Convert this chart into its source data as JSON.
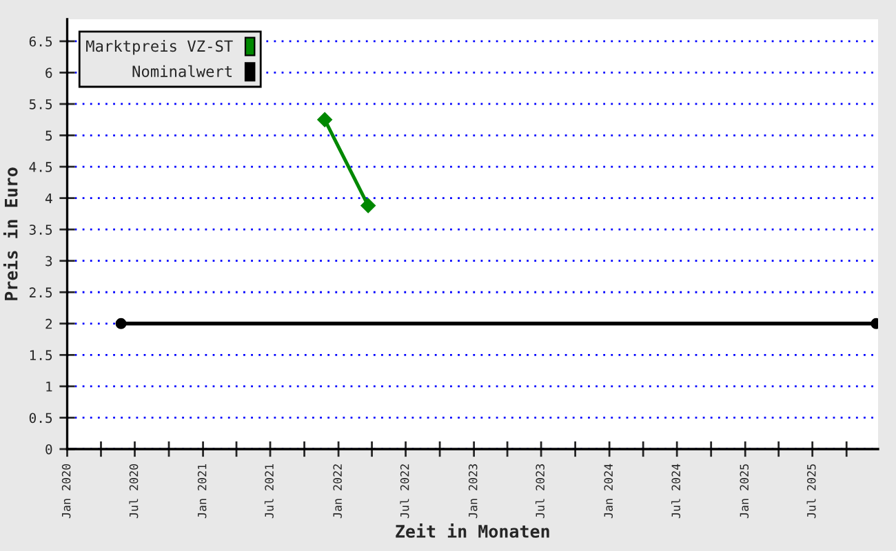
{
  "chart_data": {
    "type": "line",
    "xlabel": "Zeit in Monaten",
    "ylabel": "Preis in Euro",
    "xlim": [
      "2020-01-01",
      "2025-12-25"
    ],
    "ylim": [
      0,
      6.85
    ],
    "xticks": [
      {
        "value": "2020-01-01",
        "label": "Jan 2020"
      },
      {
        "value": "2020-04-01",
        "label": null
      },
      {
        "value": "2020-07-01",
        "label": "Jul 2020"
      },
      {
        "value": "2020-10-01",
        "label": null
      },
      {
        "value": "2021-01-01",
        "label": "Jan 2021"
      },
      {
        "value": "2021-04-01",
        "label": null
      },
      {
        "value": "2021-07-01",
        "label": "Jul 2021"
      },
      {
        "value": "2021-10-01",
        "label": null
      },
      {
        "value": "2022-01-01",
        "label": "Jan 2022"
      },
      {
        "value": "2022-04-01",
        "label": null
      },
      {
        "value": "2022-07-01",
        "label": "Jul 2022"
      },
      {
        "value": "2022-10-01",
        "label": null
      },
      {
        "value": "2023-01-01",
        "label": "Jan 2023"
      },
      {
        "value": "2023-04-01",
        "label": null
      },
      {
        "value": "2023-07-01",
        "label": "Jul 2023"
      },
      {
        "value": "2023-10-01",
        "label": null
      },
      {
        "value": "2024-01-01",
        "label": "Jan 2024"
      },
      {
        "value": "2024-04-01",
        "label": null
      },
      {
        "value": "2024-07-01",
        "label": "Jul 2024"
      },
      {
        "value": "2024-10-01",
        "label": null
      },
      {
        "value": "2025-01-01",
        "label": "Jan 2025"
      },
      {
        "value": "2025-04-01",
        "label": null
      },
      {
        "value": "2025-07-01",
        "label": "Jul 2025"
      },
      {
        "value": "2025-10-01",
        "label": null
      }
    ],
    "yticks": [
      0,
      0.5,
      1,
      1.5,
      2,
      2.5,
      3,
      3.5,
      4,
      4.5,
      5,
      5.5,
      6,
      6.5
    ],
    "grid": "y",
    "legend": "top left",
    "series": [
      {
        "name": "Marktpreis VZ-ST",
        "color": "#008800",
        "marker": "diamond",
        "x": [
          "2021-11-25",
          "2022-03-22"
        ],
        "values": [
          5.25,
          3.88
        ]
      },
      {
        "name": "Nominalwert",
        "color": "#000000",
        "marker": "circle",
        "x": [
          "2020-05-25",
          "2025-12-20"
        ],
        "values": [
          2,
          2
        ]
      }
    ]
  }
}
